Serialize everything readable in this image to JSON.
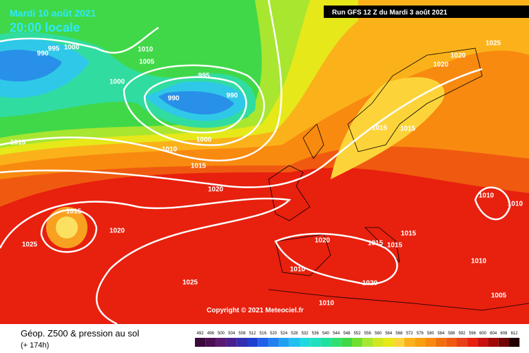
{
  "header": {
    "date": "Mardi 10 août 2021",
    "time": "20:00 locale",
    "run": "Run GFS 12 Z du Mardi 3 août 2021"
  },
  "copyright": "Copyright © 2021 Meteociel.fr",
  "footer": {
    "title": "Géop. Z500 & pression au sol",
    "lead": "(+ 174h)"
  },
  "isobar_labels": [
    "990",
    "995",
    "1000",
    "1010",
    "1005",
    "1000",
    "995",
    "990",
    "990",
    "1000",
    "1010",
    "1015",
    "1015",
    "1020",
    "1015",
    "1020",
    "1025",
    "1025",
    "1020",
    "1015",
    "1015",
    "1015",
    "1010",
    "1020",
    "1010",
    "1010",
    "1005",
    "1010",
    "1010",
    "1015",
    "1015",
    "1020",
    "1020",
    "1025"
  ],
  "scale_labels": [
    "492",
    "496",
    "500",
    "504",
    "508",
    "512",
    "516",
    "520",
    "524",
    "528",
    "532",
    "536",
    "540",
    "544",
    "548",
    "552",
    "556",
    "560",
    "564",
    "568",
    "572",
    "576",
    "580",
    "584",
    "588",
    "592",
    "596",
    "600",
    "604",
    "608",
    "612"
  ]
}
